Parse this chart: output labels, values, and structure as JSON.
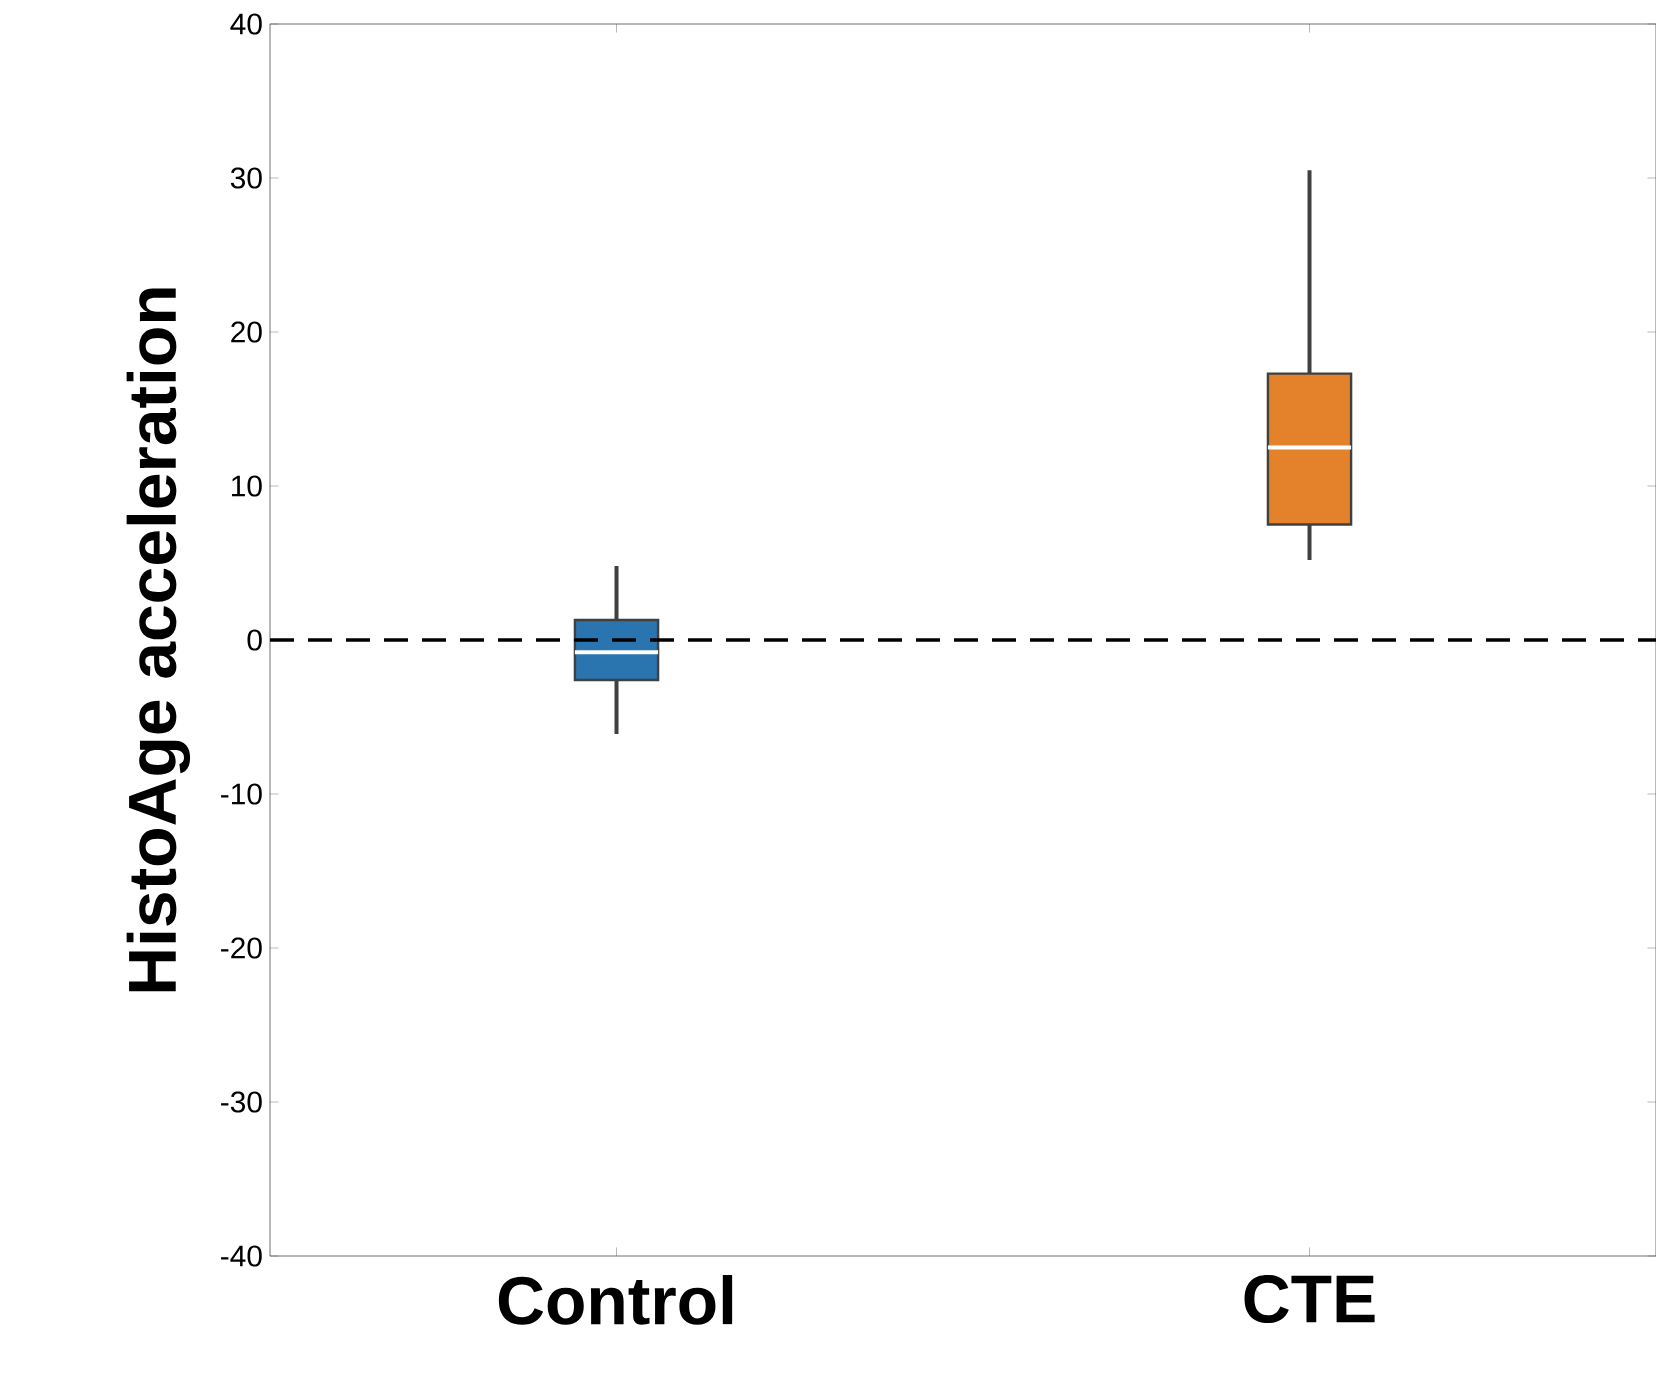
{
  "chart_data": {
    "type": "box",
    "ylabel": "HistoAge acceleration",
    "categories": [
      "Control",
      "CTE"
    ],
    "colors": [
      "#2a74b0",
      "#e4822b"
    ],
    "boxes": [
      {
        "low": -6.1,
        "q1": -2.6,
        "median": -0.8,
        "q3": 1.3,
        "high": 4.8
      },
      {
        "low": 5.2,
        "q1": 7.5,
        "median": 12.5,
        "q3": 17.3,
        "high": 30.5
      }
    ],
    "ylim": [
      -40,
      40
    ],
    "yticks": [
      -40,
      -30,
      -20,
      -10,
      0,
      10,
      20,
      30,
      40
    ],
    "ref_lines": [
      {
        "axis": "y",
        "value": 0,
        "line_style": "dashed",
        "color": "#000000"
      }
    ]
  }
}
